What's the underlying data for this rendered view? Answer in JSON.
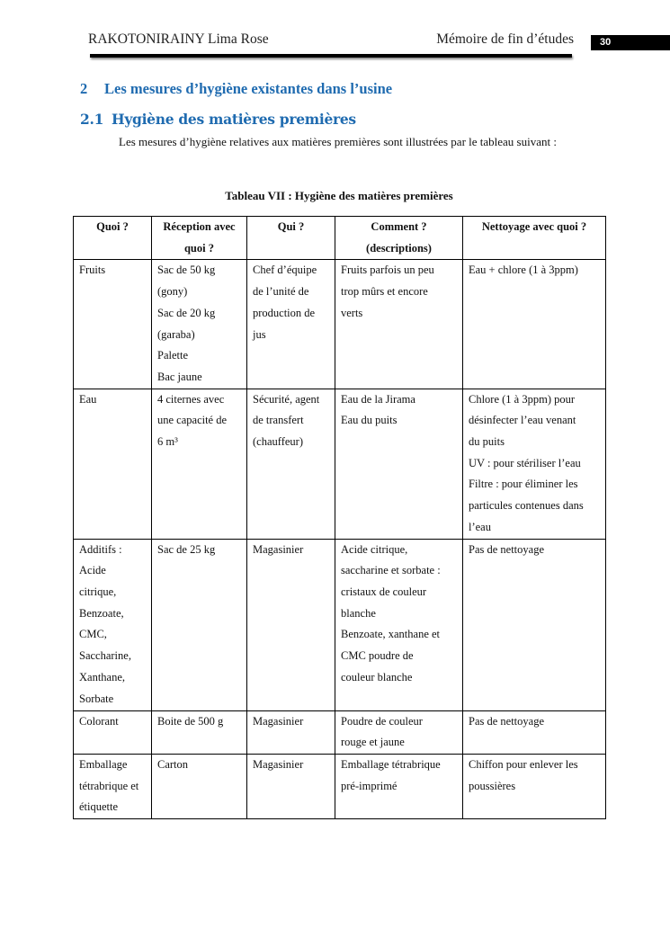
{
  "header": {
    "author": "RAKOTONIRAINY Lima Rose",
    "doc_title": "Mémoire de fin d’études",
    "page_number": "30"
  },
  "section": {
    "number": "2",
    "title": "Les mesures d’hygiène existantes dans l’usine"
  },
  "subsection": {
    "number": "2.1",
    "title": "Hygiène des matières premières"
  },
  "intro": "Les mesures d’hygiène relatives aux matières premières sont illustrées par le tableau suivant :",
  "table": {
    "caption": "Tableau VII : Hygiène des matières premières",
    "headers": [
      [
        "Quoi ?"
      ],
      [
        "Réception avec",
        "quoi ?"
      ],
      [
        "Qui ?"
      ],
      [
        "Comment ?",
        "(descriptions)"
      ],
      [
        "Nettoyage avec quoi ?"
      ]
    ],
    "rows": [
      [
        [
          "Fruits"
        ],
        [
          "Sac de 50 kg",
          "(gony)",
          "Sac de 20 kg",
          "(garaba)",
          "Palette",
          "Bac jaune"
        ],
        [
          "Chef d’équipe",
          "de l’unité de",
          "production de",
          "jus"
        ],
        [
          "Fruits parfois un peu",
          "trop mûrs et encore",
          "verts"
        ],
        [
          "Eau + chlore (1 à 3ppm)"
        ]
      ],
      [
        [
          "Eau"
        ],
        [
          "4 citernes avec",
          "une capacité de",
          "6 m³"
        ],
        [
          "Sécurité, agent",
          "de transfert",
          "(chauffeur)"
        ],
        [
          "Eau de la Jirama",
          "Eau du puits"
        ],
        [
          "Chlore (1 à 3ppm)  pour",
          "désinfecter l’eau venant",
          "du puits",
          "UV : pour stériliser l’eau",
          "Filtre : pour éliminer les",
          "particules contenues dans",
          "l’eau"
        ]
      ],
      [
        [
          " Additifs :",
          "Acide",
          "citrique,",
          "Benzoate,",
          "CMC,",
          "Saccharine,",
          "Xanthane,",
          "Sorbate"
        ],
        [
          "Sac de 25 kg"
        ],
        [
          "Magasinier"
        ],
        [
          "Acide citrique,",
          "saccharine et sorbate :",
          "cristaux de couleur",
          "blanche",
          "Benzoate, xanthane et",
          "CMC poudre de",
          "couleur blanche"
        ],
        [
          "Pas de nettoyage"
        ]
      ],
      [
        [
          "Colorant"
        ],
        [
          "Boite de 500 g"
        ],
        [
          "Magasinier"
        ],
        [
          "Poudre de couleur",
          "rouge et jaune"
        ],
        [
          "Pas de nettoyage"
        ]
      ],
      [
        [
          "Emballage",
          "tétrabrique et",
          "étiquette"
        ],
        [
          "Carton"
        ],
        [
          "Magasinier"
        ],
        [
          "Emballage tétrabrique",
          "pré-imprimé"
        ],
        [
          "Chiffon pour enlever les",
          "poussières"
        ]
      ]
    ]
  },
  "colors": {
    "heading": "#1f6bb0",
    "page_number_bg": "#000000"
  }
}
